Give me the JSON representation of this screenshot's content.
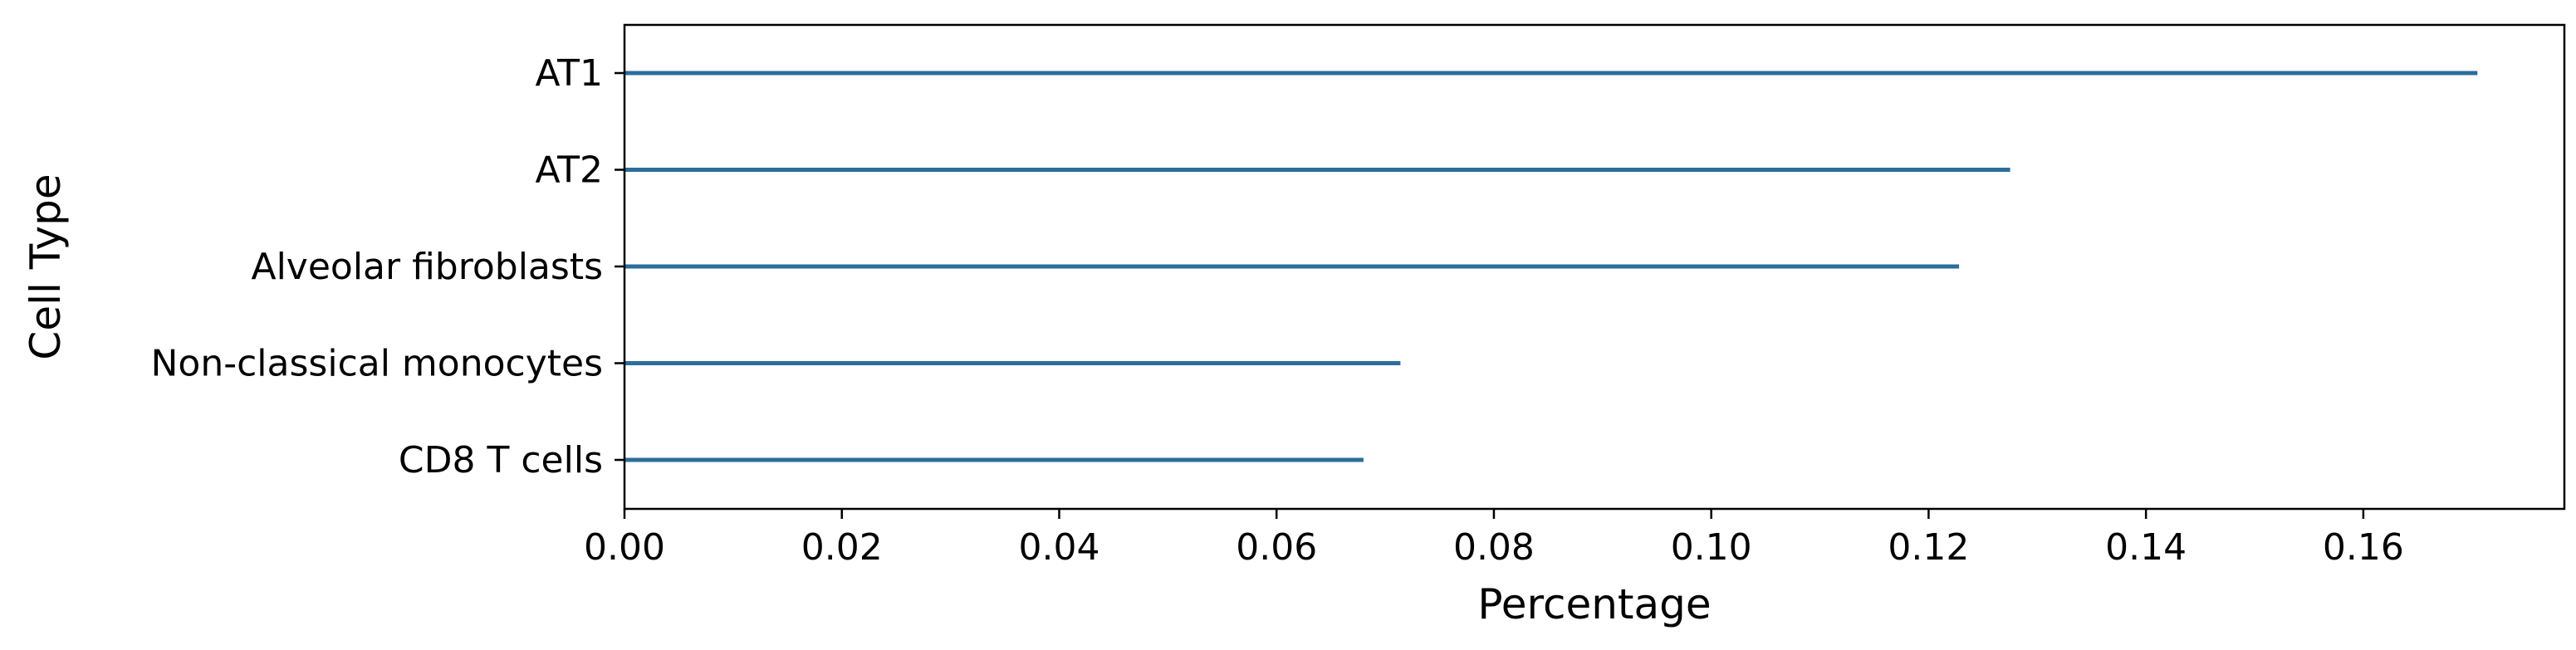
{
  "chart_data": {
    "type": "bar",
    "orientation": "horizontal",
    "categories": [
      "AT1",
      "AT2",
      "Alveolar fibroblasts",
      "Non-classical monocytes",
      "CD8 T cells"
    ],
    "values": [
      0.1705,
      0.1275,
      0.1228,
      0.0714,
      0.068
    ],
    "xlabel": "Percentage",
    "ylabel": "Cell Type",
    "xlim": [
      0.0,
      0.1785
    ],
    "xticks": [
      0.0,
      0.02,
      0.04,
      0.06,
      0.08,
      0.1,
      0.12,
      0.14,
      0.16
    ],
    "xtick_labels": [
      "0.00",
      "0.02",
      "0.04",
      "0.06",
      "0.08",
      "0.10",
      "0.12",
      "0.14",
      "0.16"
    ],
    "bar_color": "#2c6e9b",
    "grid": false,
    "legend": "none"
  }
}
